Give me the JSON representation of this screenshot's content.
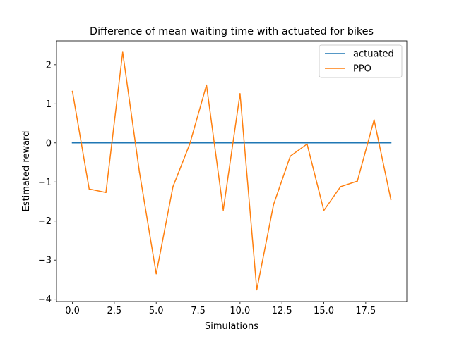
{
  "chart_data": {
    "type": "line",
    "title": "Difference of mean waiting time with actuated for bikes",
    "xlabel": "Simulations",
    "ylabel": "Estimated reward",
    "xlim": [
      -0.95,
      19.95
    ],
    "ylim": [
      -4.06,
      2.61
    ],
    "x_ticks": [
      {
        "value": 0,
        "label": "0.0"
      },
      {
        "value": 2.5,
        "label": "2.5"
      },
      {
        "value": 5,
        "label": "5.0"
      },
      {
        "value": 7.5,
        "label": "7.5"
      },
      {
        "value": 10,
        "label": "10.0"
      },
      {
        "value": 12.5,
        "label": "12.5"
      },
      {
        "value": 15,
        "label": "15.0"
      },
      {
        "value": 17.5,
        "label": "17.5"
      }
    ],
    "y_ticks": [
      {
        "value": -4,
        "label": "−4"
      },
      {
        "value": -3,
        "label": "−3"
      },
      {
        "value": -2,
        "label": "−2"
      },
      {
        "value": -1,
        "label": "−1"
      },
      {
        "value": 0,
        "label": "0"
      },
      {
        "value": 1,
        "label": "1"
      },
      {
        "value": 2,
        "label": "2"
      }
    ],
    "grid": false,
    "legend_position": "top-right",
    "x": [
      0,
      1,
      2,
      3,
      4,
      5,
      6,
      7,
      8,
      9,
      10,
      11,
      12,
      13,
      14,
      15,
      16,
      17,
      18,
      19
    ],
    "series": [
      {
        "name": "actuated",
        "color": "#1f77b4",
        "values": [
          0,
          0,
          0,
          0,
          0,
          0,
          0,
          0,
          0,
          0,
          0,
          0,
          0,
          0,
          0,
          0,
          0,
          0,
          0,
          0
        ]
      },
      {
        "name": "PPO",
        "color": "#ff7f0e",
        "values": [
          1.32,
          -1.18,
          -1.27,
          2.32,
          -0.75,
          -3.35,
          -1.12,
          -0.03,
          1.48,
          -1.72,
          1.26,
          -3.76,
          -1.58,
          -0.34,
          -0.03,
          -1.73,
          -1.12,
          -0.98,
          0.59,
          -1.45
        ]
      }
    ]
  }
}
